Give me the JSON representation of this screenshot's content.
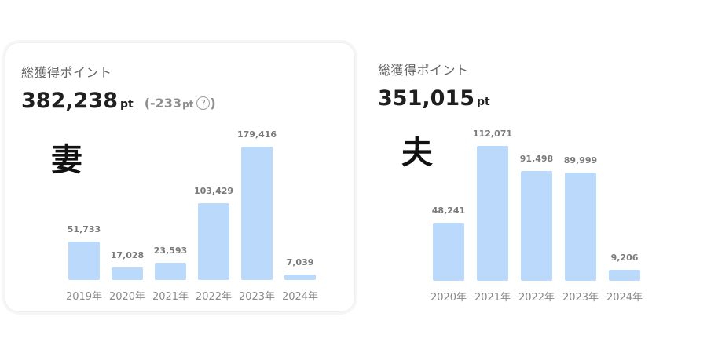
{
  "panels": [
    {
      "title": "総獲得ポイント",
      "total": "382,238",
      "unit": "pt",
      "diff_open": "(",
      "diff": "-233",
      "diff_unit": "pt",
      "diff_close": ")",
      "help_icon": "question-circle-icon",
      "handwritten_label": "妻"
    },
    {
      "title": "総獲得ポイント",
      "total": "351,015",
      "unit": "pt",
      "handwritten_label": "夫"
    }
  ],
  "colors": {
    "bar": "#bad9fb",
    "text": "#1f1f1f",
    "muted": "#8a8a8a"
  },
  "chart_data": [
    {
      "type": "bar",
      "categories": [
        "2019年",
        "2020年",
        "2021年",
        "2022年",
        "2023年",
        "2024年"
      ],
      "values": [
        51733,
        17028,
        23593,
        103429,
        179416,
        7039
      ],
      "value_labels": [
        "51,733",
        "17,028",
        "23,593",
        "103,429",
        "179,416",
        "7,039"
      ]
    },
    {
      "type": "bar",
      "categories": [
        "2020年",
        "2021年",
        "2022年",
        "2023年",
        "2024年"
      ],
      "values": [
        48241,
        112071,
        91498,
        89999,
        9206
      ],
      "value_labels": [
        "48,241",
        "112,071",
        "91,498",
        "89,999",
        "9,206"
      ]
    }
  ]
}
